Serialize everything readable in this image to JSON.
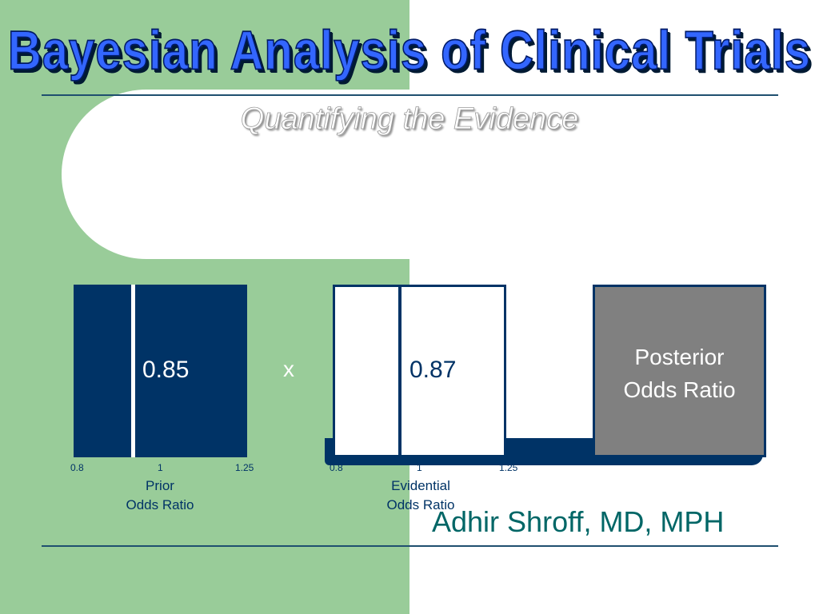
{
  "slide": {
    "title": "Bayesian Analysis of Clinical Trials",
    "subtitle": "Quantifying the Evidence",
    "author": "Adhir Shroff, MD, MPH"
  },
  "prior": {
    "value_label": "0.85",
    "value": 0.85,
    "axis_ticks": [
      "0.8",
      "1",
      "1.25"
    ],
    "caption_line1": "Prior",
    "caption_line2": "Odds Ratio"
  },
  "operator": "x",
  "evidential": {
    "value_label": "0.87",
    "value": 0.87,
    "axis_ticks": [
      "0.8",
      "1",
      "1.25"
    ],
    "caption_line1": "Evidential",
    "caption_line2": "Odds Ratio"
  },
  "posterior": {
    "label_line1": "Posterior",
    "label_line2": "Odds Ratio"
  },
  "colors": {
    "navy": "#003366",
    "green_panel": "#99cc99",
    "title_blue": "#3366ff",
    "posterior_gray": "#808080",
    "author_teal": "#006666"
  }
}
